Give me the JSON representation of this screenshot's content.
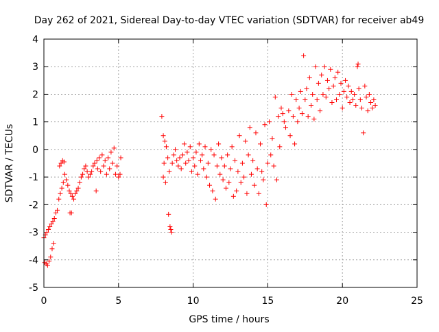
{
  "chart_data": {
    "type": "scatter",
    "title": "Day 262 of 2021, Sidereal Day-to-day VTEC variation (SDTVAR) for receiver ab49",
    "xlabel": "GPS time / hours",
    "ylabel": "SDTVAR / TECUs",
    "xlim": [
      0,
      25
    ],
    "ylim": [
      -5,
      4
    ],
    "xticks": [
      0,
      5,
      10,
      15,
      20,
      25
    ],
    "xtick_labels": [
      "0",
      "5",
      "10",
      "15",
      "20",
      "25"
    ],
    "yticks": [
      -5,
      -4,
      -3,
      -2,
      -1,
      0,
      1,
      2,
      3,
      4
    ],
    "ytick_labels": [
      "-5",
      "-4",
      "-3",
      "-2",
      "-1",
      "0",
      "1",
      "2",
      "3",
      "4"
    ],
    "grid": true,
    "marker": "+",
    "color": "#ff0000",
    "series": [
      {
        "name": "SDTVAR",
        "points": [
          [
            0.0,
            -3.2
          ],
          [
            0.05,
            -4.1
          ],
          [
            0.1,
            -3.1
          ],
          [
            0.15,
            -4.15
          ],
          [
            0.2,
            -3.0
          ],
          [
            0.25,
            -4.2
          ],
          [
            0.3,
            -2.9
          ],
          [
            0.35,
            -4.05
          ],
          [
            0.4,
            -2.8
          ],
          [
            0.45,
            -3.9
          ],
          [
            0.5,
            -2.7
          ],
          [
            0.55,
            -3.6
          ],
          [
            0.6,
            -2.6
          ],
          [
            0.65,
            -3.4
          ],
          [
            0.7,
            -2.5
          ],
          [
            0.8,
            -2.3
          ],
          [
            0.9,
            -2.2
          ],
          [
            1.0,
            -1.8
          ],
          [
            1.05,
            -0.6
          ],
          [
            1.1,
            -1.6
          ],
          [
            1.15,
            -0.5
          ],
          [
            1.2,
            -1.4
          ],
          [
            1.25,
            -0.4
          ],
          [
            1.3,
            -1.2
          ],
          [
            1.35,
            -0.45
          ],
          [
            1.4,
            -0.9
          ],
          [
            1.5,
            -1.1
          ],
          [
            1.6,
            -1.3
          ],
          [
            1.7,
            -1.5
          ],
          [
            1.75,
            -2.3
          ],
          [
            1.8,
            -1.6
          ],
          [
            1.85,
            -2.3
          ],
          [
            1.9,
            -1.7
          ],
          [
            2.0,
            -1.8
          ],
          [
            2.1,
            -1.6
          ],
          [
            2.2,
            -1.5
          ],
          [
            2.3,
            -1.4
          ],
          [
            2.4,
            -1.2
          ],
          [
            2.5,
            -1.0
          ],
          [
            2.6,
            -0.9
          ],
          [
            2.7,
            -0.7
          ],
          [
            2.8,
            -0.6
          ],
          [
            2.9,
            -0.8
          ],
          [
            3.0,
            -1.0
          ],
          [
            3.1,
            -0.9
          ],
          [
            3.2,
            -0.8
          ],
          [
            3.3,
            -0.6
          ],
          [
            3.4,
            -0.5
          ],
          [
            3.5,
            -1.5
          ],
          [
            3.55,
            -0.4
          ],
          [
            3.6,
            -0.7
          ],
          [
            3.7,
            -0.3
          ],
          [
            3.8,
            -0.8
          ],
          [
            3.9,
            -0.2
          ],
          [
            4.0,
            -0.6
          ],
          [
            4.1,
            -0.4
          ],
          [
            4.2,
            -0.9
          ],
          [
            4.3,
            -0.3
          ],
          [
            4.4,
            -0.7
          ],
          [
            4.5,
            -0.1
          ],
          [
            4.6,
            -0.5
          ],
          [
            4.7,
            0.05
          ],
          [
            4.8,
            -0.9
          ],
          [
            4.9,
            -0.6
          ],
          [
            5.0,
            -1.0
          ],
          [
            5.1,
            -0.9
          ],
          [
            5.15,
            -0.3
          ],
          [
            7.9,
            1.2
          ],
          [
            8.0,
            0.5
          ],
          [
            8.0,
            -1.0
          ],
          [
            8.05,
            -0.5
          ],
          [
            8.1,
            0.3
          ],
          [
            8.15,
            -1.2
          ],
          [
            8.2,
            0.1
          ],
          [
            8.3,
            -0.3
          ],
          [
            8.35,
            -2.35
          ],
          [
            8.4,
            -0.8
          ],
          [
            8.45,
            -2.8
          ],
          [
            8.5,
            -2.9
          ],
          [
            8.55,
            -3.0
          ],
          [
            8.6,
            -0.5
          ],
          [
            8.7,
            -0.2
          ],
          [
            8.8,
            0.0
          ],
          [
            8.9,
            -0.4
          ],
          [
            9.0,
            -0.6
          ],
          [
            9.1,
            -0.3
          ],
          [
            9.2,
            -0.7
          ],
          [
            9.3,
            -0.2
          ],
          [
            9.4,
            0.2
          ],
          [
            9.5,
            -0.5
          ],
          [
            9.6,
            -0.1
          ],
          [
            9.7,
            -0.4
          ],
          [
            9.8,
            0.1
          ],
          [
            9.9,
            -0.8
          ],
          [
            10.0,
            -0.3
          ],
          [
            10.1,
            -0.6
          ],
          [
            10.2,
            -0.1
          ],
          [
            10.3,
            -0.9
          ],
          [
            10.4,
            0.2
          ],
          [
            10.5,
            -0.4
          ],
          [
            10.6,
            -0.2
          ],
          [
            10.7,
            -0.7
          ],
          [
            10.8,
            0.1
          ],
          [
            10.9,
            -1.0
          ],
          [
            11.0,
            -0.5
          ],
          [
            11.1,
            -1.3
          ],
          [
            11.2,
            0.0
          ],
          [
            11.3,
            -1.5
          ],
          [
            11.4,
            -0.2
          ],
          [
            11.5,
            -1.8
          ],
          [
            11.6,
            -0.6
          ],
          [
            11.7,
            0.2
          ],
          [
            11.8,
            -0.9
          ],
          [
            11.9,
            -0.3
          ],
          [
            12.0,
            -1.1
          ],
          [
            12.1,
            -0.6
          ],
          [
            12.2,
            -1.4
          ],
          [
            12.3,
            -0.2
          ],
          [
            12.4,
            -1.2
          ],
          [
            12.5,
            -0.7
          ],
          [
            12.6,
            0.1
          ],
          [
            12.7,
            -1.7
          ],
          [
            12.8,
            -0.4
          ],
          [
            12.9,
            -1.5
          ],
          [
            13.0,
            -0.8
          ],
          [
            13.1,
            0.5
          ],
          [
            13.2,
            -1.2
          ],
          [
            13.3,
            -0.5
          ],
          [
            13.4,
            -1.0
          ],
          [
            13.5,
            0.3
          ],
          [
            13.6,
            -1.6
          ],
          [
            13.7,
            -0.2
          ],
          [
            13.8,
            0.8
          ],
          [
            13.9,
            -0.9
          ],
          [
            14.0,
            -0.4
          ],
          [
            14.1,
            -1.3
          ],
          [
            14.2,
            0.6
          ],
          [
            14.3,
            -0.7
          ],
          [
            14.4,
            -1.6
          ],
          [
            14.5,
            0.2
          ],
          [
            14.6,
            -0.8
          ],
          [
            14.7,
            -1.1
          ],
          [
            14.8,
            0.9
          ],
          [
            14.9,
            -2.0
          ],
          [
            15.0,
            -0.5
          ],
          [
            15.1,
            1.0
          ],
          [
            15.2,
            -0.2
          ],
          [
            15.3,
            0.4
          ],
          [
            15.4,
            -0.6
          ],
          [
            15.5,
            1.9
          ],
          [
            15.6,
            -1.1
          ],
          [
            15.7,
            1.2
          ],
          [
            15.8,
            0.1
          ],
          [
            15.9,
            1.5
          ],
          [
            16.0,
            1.3
          ],
          [
            16.1,
            1.0
          ],
          [
            16.2,
            0.8
          ],
          [
            16.4,
            1.4
          ],
          [
            16.5,
            0.5
          ],
          [
            16.6,
            2.0
          ],
          [
            16.7,
            1.2
          ],
          [
            16.8,
            0.2
          ],
          [
            16.9,
            1.8
          ],
          [
            17.0,
            1.0
          ],
          [
            17.1,
            1.5
          ],
          [
            17.2,
            2.1
          ],
          [
            17.3,
            1.3
          ],
          [
            17.4,
            3.4
          ],
          [
            17.5,
            1.8
          ],
          [
            17.6,
            2.2
          ],
          [
            17.7,
            1.2
          ],
          [
            17.8,
            2.6
          ],
          [
            17.9,
            1.6
          ],
          [
            18.0,
            2.0
          ],
          [
            18.1,
            1.1
          ],
          [
            18.2,
            3.0
          ],
          [
            18.3,
            1.8
          ],
          [
            18.4,
            2.4
          ],
          [
            18.5,
            1.4
          ],
          [
            18.6,
            2.7
          ],
          [
            18.7,
            2.0
          ],
          [
            18.8,
            3.0
          ],
          [
            18.9,
            1.9
          ],
          [
            19.0,
            2.5
          ],
          [
            19.1,
            2.2
          ],
          [
            19.2,
            2.9
          ],
          [
            19.3,
            1.7
          ],
          [
            19.4,
            2.3
          ],
          [
            19.5,
            2.6
          ],
          [
            19.6,
            1.8
          ],
          [
            19.7,
            2.8
          ],
          [
            19.8,
            2.0
          ],
          [
            19.9,
            2.4
          ],
          [
            20.0,
            1.5
          ],
          [
            20.1,
            2.1
          ],
          [
            20.2,
            2.5
          ],
          [
            20.3,
            1.9
          ],
          [
            20.4,
            2.3
          ],
          [
            20.5,
            1.7
          ],
          [
            20.6,
            2.1
          ],
          [
            20.7,
            1.8
          ],
          [
            20.8,
            2.0
          ],
          [
            20.9,
            1.6
          ],
          [
            21.0,
            3.0
          ],
          [
            21.05,
            3.1
          ],
          [
            21.1,
            2.2
          ],
          [
            21.2,
            1.8
          ],
          [
            21.3,
            1.5
          ],
          [
            21.4,
            0.6
          ],
          [
            21.5,
            2.3
          ],
          [
            21.6,
            1.9
          ],
          [
            21.7,
            1.4
          ],
          [
            21.8,
            2.0
          ],
          [
            21.9,
            1.7
          ],
          [
            22.0,
            1.5
          ],
          [
            22.1,
            1.8
          ],
          [
            22.2,
            1.6
          ]
        ]
      }
    ]
  }
}
